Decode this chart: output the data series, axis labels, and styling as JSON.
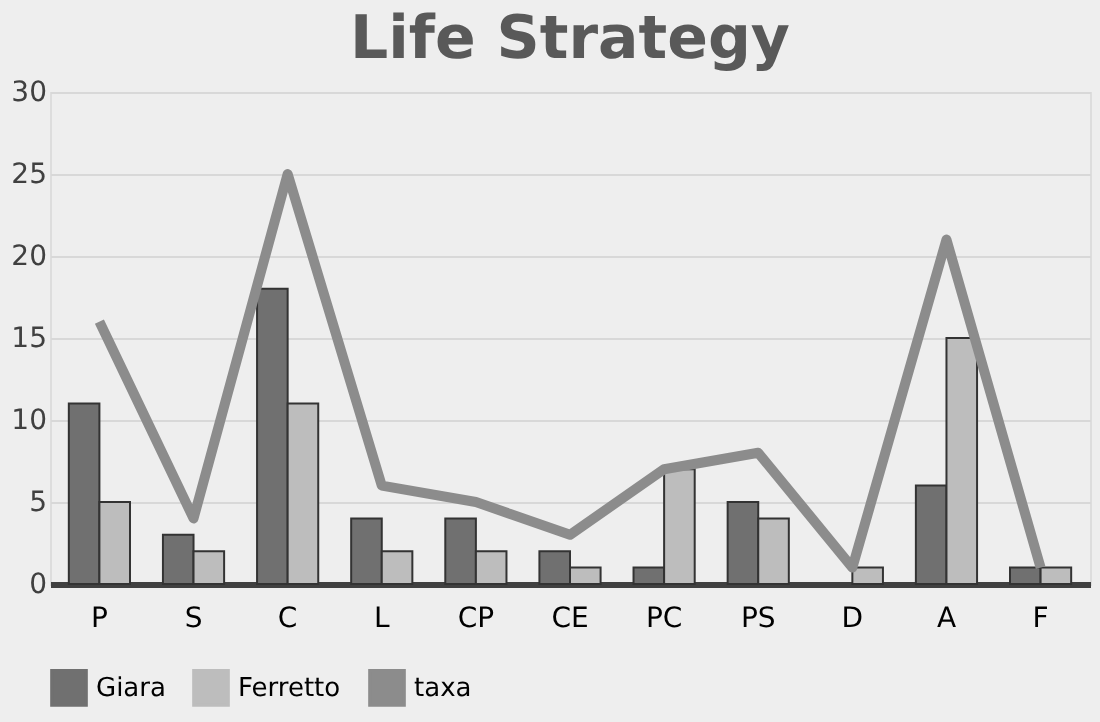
{
  "chart_data": {
    "type": "bar",
    "title": "Life Strategy",
    "categories": [
      "P",
      "S",
      "C",
      "L",
      "CP",
      "CE",
      "PC",
      "PS",
      "D",
      "A",
      "F"
    ],
    "series": [
      {
        "name": "Giara",
        "color": "#707070",
        "values": [
          11,
          3,
          18,
          4,
          4,
          2,
          1,
          5,
          null,
          6,
          1
        ]
      },
      {
        "name": "Ferretto",
        "color": "#bdbdbd",
        "values": [
          5,
          2,
          11,
          2,
          2,
          1,
          7,
          4,
          1,
          15,
          1
        ]
      },
      {
        "name": "taxa",
        "type": "line",
        "color": "#8c8c8c",
        "values": [
          16,
          4,
          25,
          6,
          5,
          3,
          7,
          8,
          1,
          21,
          1
        ]
      }
    ],
    "ylim": [
      0,
      30
    ],
    "yticks": [
      0,
      5,
      10,
      15,
      20,
      25,
      30
    ],
    "grid": "y",
    "legend": "bottom"
  }
}
